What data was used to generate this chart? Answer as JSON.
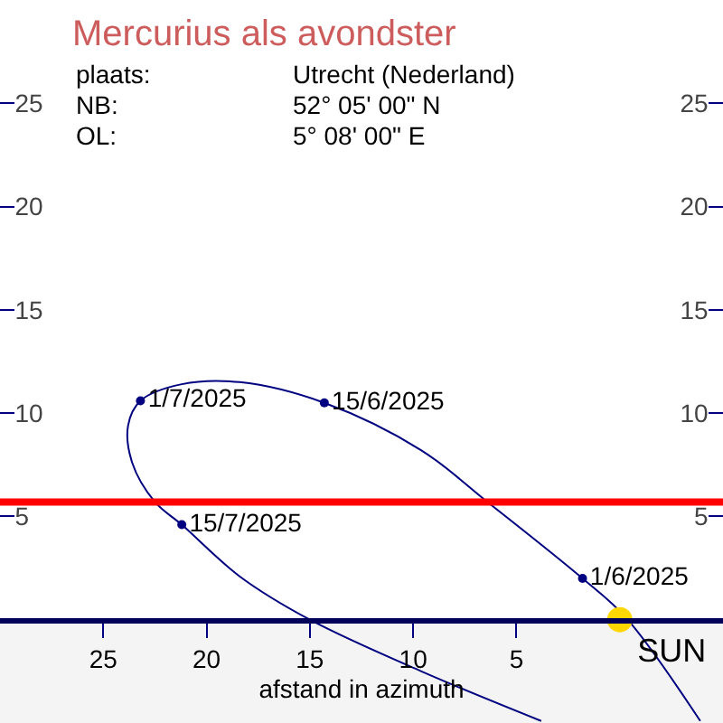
{
  "chart_data": {
    "type": "line",
    "title": "Mercurius als avondster",
    "xlabel": "afstand in azimuth",
    "annotations": [
      "plaats:",
      "Utrecht (Nederland)",
      "NB:",
      "52° 05' 00\" N",
      "OL:",
      "5° 08' 00\" E"
    ],
    "series": [
      {
        "color": "#000080",
        "x": [
          -3.9,
          -0.3,
          1.8,
          6.4,
          9.6,
          14.3,
          18.4,
          21.2,
          23.2,
          23.8,
          23.6,
          22.5,
          21.2,
          18.4,
          15.0,
          9.6,
          3.8
        ],
        "values": [
          -4.9,
          0.1,
          2.0,
          5.7,
          8.2,
          10.5,
          11.5,
          11.4,
          10.6,
          9.4,
          7.6,
          5.7,
          4.6,
          2.1,
          0.0,
          -2.5,
          -4.9
        ]
      },
      {
        "type": "scatter",
        "color": "#000080",
        "marker": "circle",
        "x": [
          1.8,
          14.3,
          23.2,
          21.2
        ],
        "values": [
          2.0,
          10.5,
          10.6,
          4.6
        ],
        "value_labels": [
          "1/6/2025",
          "15/6/2025",
          "1/7/2025",
          "15/7/2025"
        ]
      },
      {
        "type": "scatter",
        "name": "SUN",
        "color": "#ffd700",
        "marker": "circle",
        "x": [
          0
        ],
        "values": [
          0
        ]
      }
    ],
    "xlim": [
      30,
      -5
    ],
    "xticks": [
      25,
      20,
      15,
      10,
      5
    ],
    "ylim": [
      -5,
      30
    ],
    "yticks": [
      5,
      10,
      15,
      20,
      25
    ],
    "y2lim": [
      -5,
      30
    ],
    "y2ticks": [
      5,
      10,
      15,
      20,
      25
    ],
    "ref_lines": [
      {
        "axis": "y",
        "value": 5.7,
        "color": "#ff0000"
      }
    ],
    "bands": [
      {
        "axis": "y",
        "from": -5,
        "to": 0,
        "color": "#f4f4f4"
      }
    ],
    "grid": false,
    "legend": false
  }
}
